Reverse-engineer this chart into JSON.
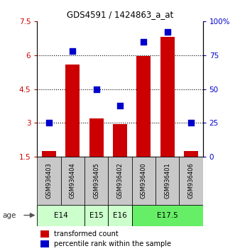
{
  "title": "GDS4591 / 1424863_a_at",
  "samples": [
    "GSM936403",
    "GSM936404",
    "GSM936405",
    "GSM936402",
    "GSM936400",
    "GSM936401",
    "GSM936406"
  ],
  "transformed_counts": [
    1.75,
    5.6,
    3.2,
    2.95,
    5.95,
    6.8,
    1.75
  ],
  "percentile_ranks": [
    25,
    78,
    50,
    38,
    85,
    92,
    25
  ],
  "age_groups": [
    {
      "label": "E14",
      "samples": [
        "GSM936403",
        "GSM936404"
      ],
      "color": "#ccffcc"
    },
    {
      "label": "E15",
      "samples": [
        "GSM936405"
      ],
      "color": "#ccffcc"
    },
    {
      "label": "E16",
      "samples": [
        "GSM936402"
      ],
      "color": "#ccffcc"
    },
    {
      "label": "E17.5",
      "samples": [
        "GSM936400",
        "GSM936401",
        "GSM936406"
      ],
      "color": "#66ee66"
    }
  ],
  "left_ylim": [
    1.5,
    7.5
  ],
  "left_yticks": [
    1.5,
    3.0,
    4.5,
    6.0,
    7.5
  ],
  "right_ylim": [
    0,
    100
  ],
  "right_yticks": [
    0,
    25,
    50,
    75,
    100
  ],
  "bar_color": "#cc0000",
  "dot_color": "#0000cc",
  "bar_width": 0.6,
  "dot_size": 35,
  "sample_bg_color": "#c8c8c8",
  "legend_bar_label": "transformed count",
  "legend_dot_label": "percentile rank within the sample",
  "age_label": "age",
  "left_tick_color": "#cc0000",
  "right_tick_color": "#0000cc",
  "grid_yticks": [
    3.0,
    4.5,
    6.0
  ]
}
